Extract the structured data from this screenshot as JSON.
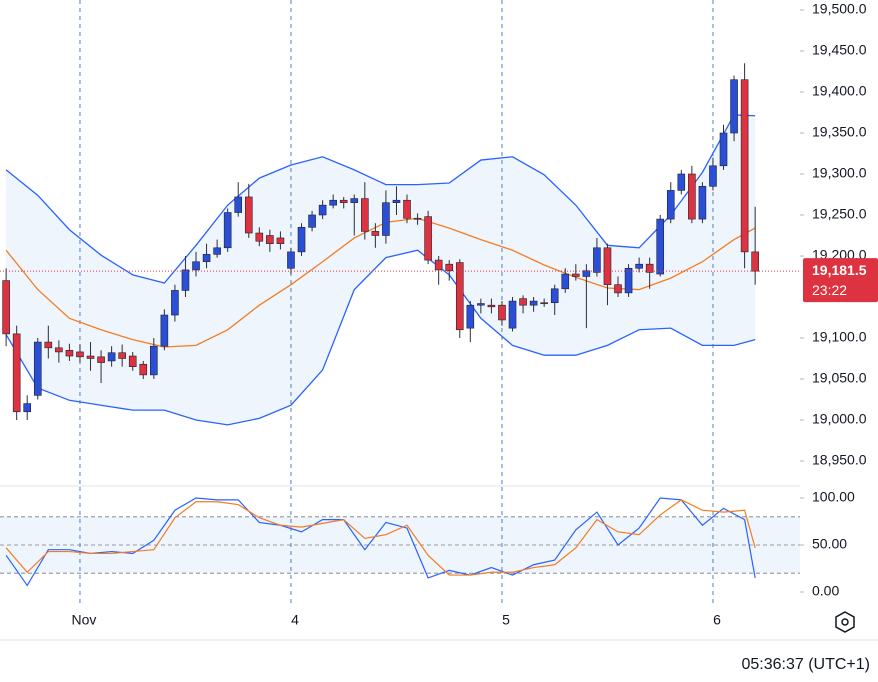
{
  "chart_data": [
    {
      "type": "candlestick",
      "xlim": [
        -0.58,
        75.25
      ],
      "ylim": [
        18920.7,
        19512.2
      ],
      "yticks": [
        {
          "value": 19500,
          "label": "19,500.0"
        },
        {
          "value": 19450,
          "label": "19,450.0"
        },
        {
          "value": 19400,
          "label": "19,400.0"
        },
        {
          "value": 19350,
          "label": "19,350.0"
        },
        {
          "value": 19300,
          "label": "19,300.0"
        },
        {
          "value": 19250,
          "label": "19,250.0"
        },
        {
          "value": 19200,
          "label": "19,200.0"
        },
        {
          "value": 19100,
          "label": "19,100.0"
        },
        {
          "value": 19050,
          "label": "19,050.0"
        },
        {
          "value": 19000,
          "label": "19,000.0"
        },
        {
          "value": 18950,
          "label": "18,950.0"
        }
      ],
      "up_color": "#2a4fd6",
      "down_color": "#dd3340",
      "x": [
        0,
        1,
        2,
        3,
        4,
        5,
        6,
        7,
        8,
        9,
        10,
        11,
        12,
        13,
        14,
        15,
        16,
        17,
        18,
        19,
        20,
        21,
        22,
        23,
        24,
        25,
        26,
        27,
        28,
        29,
        30,
        31,
        32,
        33,
        34,
        35,
        36,
        37,
        38,
        39,
        40,
        41,
        42,
        43,
        44,
        45,
        46,
        47,
        48,
        49,
        50,
        51,
        52,
        53,
        54,
        55,
        56,
        57,
        58,
        59,
        60,
        61,
        62,
        63,
        64,
        65,
        66,
        67,
        68,
        69,
        70,
        71
      ],
      "open": [
        19170,
        19105,
        19010,
        19030,
        19095,
        19088,
        19085,
        19083,
        19078,
        19077,
        19072,
        19082,
        19078,
        19068,
        19055,
        19090,
        19128,
        19158,
        19183,
        19193,
        19202,
        19210,
        19253,
        19272,
        19228,
        19225,
        19222,
        19185,
        19205,
        19235,
        19250,
        19262,
        19268,
        19265,
        19270,
        19230,
        19225,
        19265,
        19268,
        19246,
        19248,
        19195,
        19190,
        19192,
        19112,
        19140,
        19140,
        19140,
        19112,
        19148,
        19140,
        19143,
        19143,
        19160,
        19178,
        19175,
        19180,
        19210,
        19165,
        19155,
        19185,
        19190,
        19178,
        19245,
        19280,
        19300,
        19245,
        19285,
        19310,
        19350,
        19415,
        19205
      ],
      "high": [
        19185,
        19115,
        19030,
        19100,
        19115,
        19097,
        19093,
        19092,
        19095,
        19085,
        19090,
        19092,
        19083,
        19072,
        19100,
        19135,
        19165,
        19200,
        19205,
        19215,
        19220,
        19258,
        19290,
        19288,
        19235,
        19232,
        19230,
        19210,
        19240,
        19255,
        19268,
        19275,
        19272,
        19275,
        19290,
        19240,
        19280,
        19285,
        19275,
        19252,
        19255,
        19200,
        19195,
        19196,
        19145,
        19148,
        19148,
        19145,
        19150,
        19152,
        19150,
        19148,
        19165,
        19185,
        19190,
        19190,
        19222,
        19215,
        19175,
        19190,
        19198,
        19198,
        19250,
        19290,
        19305,
        19310,
        19290,
        19320,
        19360,
        19420,
        19435,
        19260
      ],
      "low": [
        19090,
        19000,
        19000,
        19025,
        19075,
        19070,
        19072,
        19070,
        19060,
        19045,
        19065,
        19065,
        19060,
        19050,
        19050,
        19085,
        19120,
        19150,
        19175,
        19185,
        19198,
        19205,
        19248,
        19222,
        19212,
        19205,
        19208,
        19178,
        19200,
        19230,
        19245,
        19258,
        19258,
        19225,
        19220,
        19210,
        19215,
        19250,
        19240,
        19238,
        19190,
        19165,
        19170,
        19100,
        19095,
        19130,
        19130,
        19115,
        19108,
        19130,
        19132,
        19138,
        19128,
        19155,
        19170,
        19112,
        19175,
        19140,
        19150,
        19150,
        19180,
        19160,
        19175,
        19240,
        19275,
        19240,
        19240,
        19280,
        19305,
        19340,
        19185,
        19165
      ],
      "close": [
        19105,
        19010,
        19020,
        19095,
        19088,
        19083,
        19078,
        19077,
        19075,
        19070,
        19082,
        19075,
        19065,
        19055,
        19090,
        19128,
        19158,
        19183,
        19193,
        19202,
        19210,
        19253,
        19272,
        19228,
        19218,
        19215,
        19215,
        19205,
        19235,
        19250,
        19262,
        19268,
        19265,
        19270,
        19230,
        19225,
        19265,
        19268,
        19246,
        19245,
        19195,
        19183,
        19182,
        19110,
        19140,
        19142,
        19138,
        19122,
        19145,
        19140,
        19145,
        19142,
        19160,
        19178,
        19175,
        19182,
        19210,
        19165,
        19155,
        19185,
        19190,
        19180,
        19245,
        19280,
        19300,
        19245,
        19285,
        19310,
        19350,
        19415,
        19205,
        19181.5
      ],
      "bands": {
        "x": [
          0,
          3,
          6,
          9,
          12,
          15,
          18,
          21,
          24,
          27,
          30,
          33,
          36,
          39,
          42,
          45,
          48,
          51,
          54,
          57,
          60,
          63,
          66,
          69,
          71
        ],
        "upper": [
          19305,
          19274,
          19232,
          19201,
          19177,
          19167,
          19213,
          19262,
          19295,
          19311,
          19321,
          19305,
          19287,
          19287,
          19289,
          19317,
          19321,
          19299,
          19262,
          19213,
          19210,
          19250,
          19302,
          19372,
          19371
        ],
        "middle": [
          19207,
          19159,
          19124,
          19110,
          19098,
          19089,
          19091,
          19110,
          19140,
          19165,
          19193,
          19222,
          19241,
          19246,
          19234,
          19220,
          19207,
          19189,
          19174,
          19161,
          19159,
          19173,
          19193,
          19220,
          19234
        ],
        "lower": [
          19104,
          19039,
          19024,
          19018,
          19012,
          19012,
          19000,
          18994,
          19002,
          19018,
          19061,
          19159,
          19198,
          19207,
          19177,
          19124,
          19091,
          19079,
          19079,
          19091,
          19110,
          19112,
          19091,
          19091,
          19098
        ],
        "band_color": "#2962ff",
        "middle_color": "#f57c20",
        "fill": "#eef5fc"
      },
      "last_price": {
        "value": 19181.5,
        "label": "19,181.5"
      },
      "countdown": "23:22"
    },
    {
      "type": "line",
      "xlim": [
        -0.58,
        75.25
      ],
      "ylim": [
        -11.7,
        111.7
      ],
      "yticks": [
        {
          "value": 100,
          "label": "100.00"
        },
        {
          "value": 50,
          "label": "50.00"
        },
        {
          "value": 0,
          "label": "0.00"
        }
      ],
      "xticks": [
        {
          "value": 7,
          "label": "Nov"
        },
        {
          "value": 27,
          "label": "4"
        },
        {
          "value": 47,
          "label": "5"
        },
        {
          "value": 67,
          "label": "6"
        }
      ],
      "levels": [
        20,
        50,
        80
      ],
      "x": [
        0,
        2,
        4,
        6,
        8,
        10,
        12,
        14,
        16,
        18,
        20,
        22,
        24,
        26,
        28,
        30,
        32,
        34,
        36,
        38,
        40,
        42,
        44,
        46,
        48,
        50,
        52,
        54,
        56,
        58,
        60,
        62,
        64,
        66,
        68,
        70,
        71
      ],
      "series": [
        {
          "color": "#2962ff",
          "values": [
            39,
            7,
            45,
            45,
            41,
            43,
            41,
            55,
            87,
            100,
            98,
            98,
            74,
            71,
            64,
            77,
            77,
            45,
            74,
            68,
            15,
            23,
            18,
            26,
            18,
            29,
            34,
            66,
            85,
            50,
            68,
            100,
            98,
            71,
            89,
            77,
            15
          ]
        },
        {
          "color": "#f57c20",
          "values": [
            47,
            21,
            43,
            43,
            41,
            41,
            43,
            45,
            79,
            96,
            96,
            93,
            79,
            71,
            69,
            73,
            77,
            57,
            61,
            71,
            39,
            18,
            18,
            21,
            21,
            26,
            29,
            47,
            77,
            64,
            61,
            82,
            98,
            87,
            85,
            87,
            47
          ]
        }
      ]
    }
  ],
  "clock": "05:36:37 (UTC+1)"
}
